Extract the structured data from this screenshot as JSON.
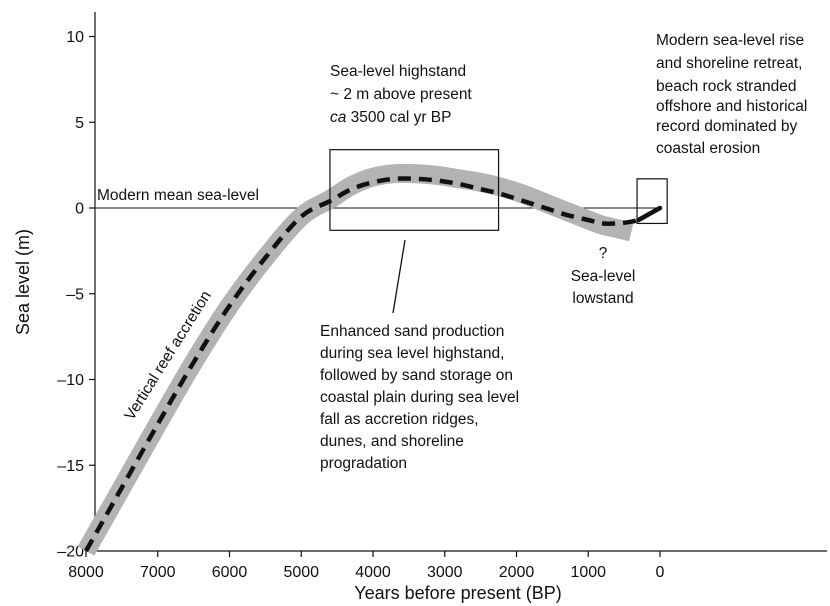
{
  "chart_data": {
    "type": "line",
    "xlabel": "Years before present  (BP)",
    "ylabel": "Sea level (m)",
    "xlim": [
      8000,
      -2400
    ],
    "ylim": [
      -20,
      11.5
    ],
    "x_ticks": [
      8000,
      7000,
      6000,
      5000,
      4000,
      3000,
      2000,
      1000,
      0
    ],
    "y_ticks": [
      10,
      5,
      0,
      -5,
      -10,
      -15,
      -20
    ],
    "grid": false,
    "series": [
      {
        "style": "thick grey band",
        "x": [
          8000,
          7500,
          7000,
          6500,
          6000,
          5500,
          5000,
          4600,
          4300,
          4000,
          3700,
          3400,
          3100,
          2800,
          2500,
          2200,
          1900,
          1600,
          1300,
          1000,
          800,
          600,
          400
        ],
        "y": [
          -20,
          -16.3,
          -12.6,
          -9.0,
          -5.7,
          -2.9,
          -0.5,
          0.5,
          1.3,
          1.8,
          2.0,
          2.0,
          1.9,
          1.7,
          1.5,
          1.2,
          0.8,
          0.3,
          -0.2,
          -0.7,
          -1.0,
          -1.2,
          -1.4
        ]
      },
      {
        "style": "dashed black",
        "x": [
          8000,
          7500,
          7000,
          6500,
          6000,
          5500,
          5000,
          4600,
          4300,
          4000,
          3700,
          3400,
          3100,
          2800,
          2500,
          2200,
          1900,
          1600,
          1300,
          1000,
          800,
          600,
          400,
          300
        ],
        "y": [
          -20,
          -16.3,
          -12.6,
          -9.0,
          -5.7,
          -2.9,
          -0.5,
          0.4,
          1.1,
          1.5,
          1.7,
          1.7,
          1.6,
          1.4,
          1.1,
          0.8,
          0.4,
          0.0,
          -0.4,
          -0.7,
          -0.9,
          -0.9,
          -0.8,
          -0.7
        ]
      },
      {
        "style": "solid black",
        "x": [
          300,
          0
        ],
        "y": [
          -0.7,
          0
        ]
      }
    ],
    "reference_lines": [
      {
        "label": "Modern mean sea-level",
        "y": 0,
        "x_from": 8000,
        "x_to": 0
      }
    ],
    "boxes": [
      {
        "x_from": 4600,
        "x_to": 2250,
        "y_from": -1.3,
        "y_to": 3.4
      },
      {
        "x_from": 320,
        "x_to": -100,
        "y_from": -0.9,
        "y_to": 1.7
      }
    ],
    "annotations": [
      {
        "id": "highstand",
        "lines": [
          "Sea-level highstand",
          "~ 2 m above present"
        ],
        "italic_prefix": "ca",
        "rest": " 3500 cal yr BP"
      },
      {
        "id": "modern",
        "lines": [
          "Modern sea-level rise",
          "and shoreline retreat,",
          "beach rock stranded",
          "offshore and historical",
          "record dominated by",
          "coastal erosion"
        ]
      },
      {
        "id": "lowstand",
        "lines": [
          "?",
          "Sea-level",
          "lowstand"
        ]
      },
      {
        "id": "sand",
        "lines": [
          "Enhanced sand production",
          "during sea level highstand,",
          "followed by sand storage on",
          "coastal plain during sea level",
          "fall as accretion ridges,",
          "dunes, and shoreline",
          "progradation"
        ]
      },
      {
        "id": "reef",
        "text": "Vertical reef accretion"
      }
    ]
  },
  "colors": {
    "band": "#b3b3b3",
    "line": "#111111",
    "axis": "#111111"
  }
}
